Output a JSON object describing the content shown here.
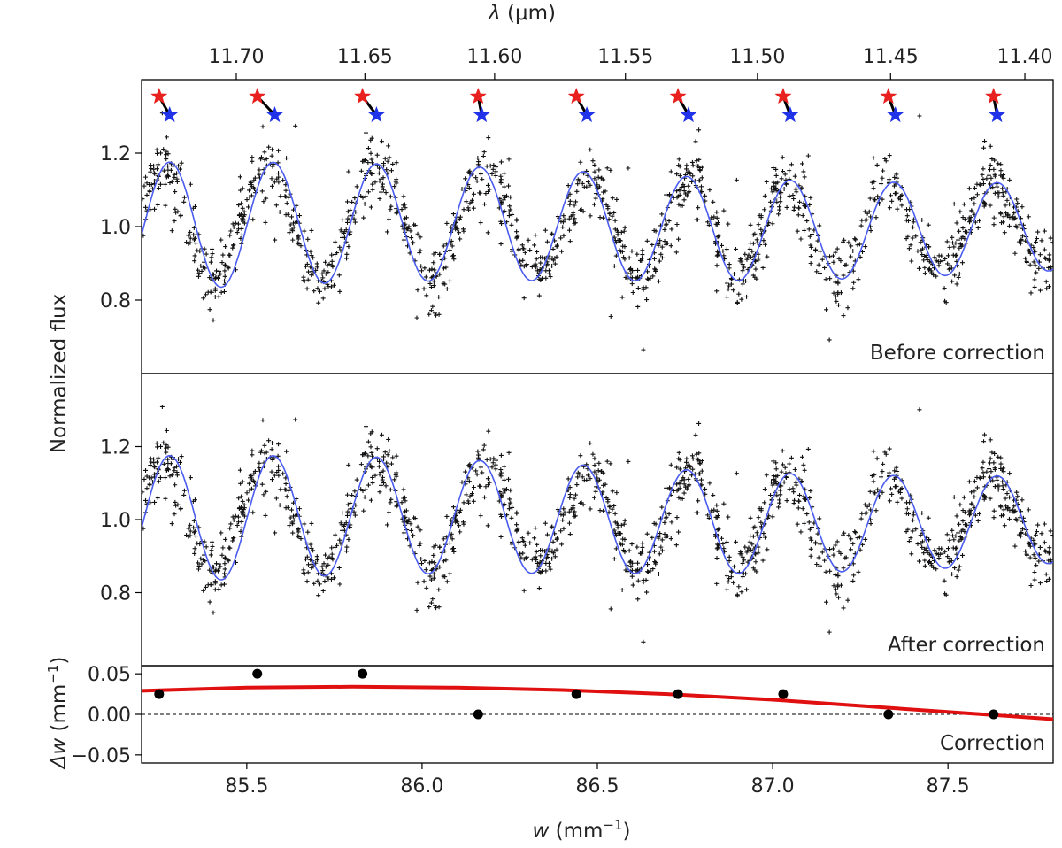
{
  "chart_data": {
    "type": "scatter",
    "top_axis": {
      "label_symbol": "λ",
      "label_unit": "(μm)",
      "ticks": [
        11.7,
        11.65,
        11.6,
        11.55,
        11.5,
        11.45,
        11.4
      ],
      "tick_labels": [
        "11.70",
        "11.65",
        "11.60",
        "11.55",
        "11.50",
        "11.45",
        "11.40"
      ],
      "relation": "λ(μm) = 1000 / w(mm⁻¹)"
    },
    "x_axis": {
      "label_symbol": "w",
      "label_unit": "(mm",
      "label_exp": "−1",
      "label_close": ")",
      "lim": [
        85.2,
        87.8
      ],
      "ticks": [
        85.5,
        86.0,
        86.5,
        87.0,
        87.5
      ],
      "tick_labels": [
        "85.5",
        "86.0",
        "86.5",
        "87.0",
        "87.5"
      ]
    },
    "flux_axis": {
      "label": "Normalized flux",
      "lim": [
        0.6,
        1.4
      ],
      "ticks": [
        0.8,
        1.0,
        1.2
      ],
      "tick_labels": [
        "0.8",
        "1.0",
        "1.2"
      ]
    },
    "panels": [
      {
        "id": "before",
        "title": "Before correction",
        "model_line_color": "#4a5cf0",
        "model_peaks": [
          85.28,
          85.58,
          85.87,
          86.17,
          86.47,
          86.76,
          87.05,
          87.35,
          87.64
        ],
        "model_amplitudes_early": 0.175,
        "model_amplitude_late": 0.12,
        "data_shift": 0.0,
        "markers": {
          "red_star_color": "#e8201e",
          "blue_star_color": "#2133e8",
          "red_w": [
            85.25,
            85.53,
            85.83,
            86.16,
            86.44,
            86.73,
            87.03,
            87.33,
            87.63
          ],
          "blue_w": [
            85.28,
            85.58,
            85.87,
            86.17,
            86.47,
            86.76,
            87.05,
            87.35,
            87.64
          ]
        }
      },
      {
        "id": "after",
        "title": "After correction",
        "model_line_color": "#4a5cf0",
        "data_shift": 0.0
      },
      {
        "id": "correction",
        "title": "Correction",
        "y_label_symbol": "Δw",
        "y_label_unit": "(mm",
        "y_label_exp": "−1",
        "y_label_close": ")",
        "y_lim": [
          -0.06,
          0.06
        ],
        "y_ticks": [
          -0.05,
          0.0,
          0.05
        ],
        "y_tick_labels": [
          "−0.05",
          "0.00",
          "0.05"
        ],
        "points_w": [
          85.25,
          85.53,
          85.83,
          86.16,
          86.44,
          86.73,
          87.03,
          87.33,
          87.63
        ],
        "points_dw": [
          0.025,
          0.05,
          0.05,
          0.0,
          0.025,
          0.025,
          0.025,
          0.0,
          0.0
        ],
        "fit_color": "#e01010",
        "fit_curve_w": [
          85.2,
          85.5,
          85.8,
          86.1,
          86.4,
          86.7,
          87.0,
          87.3,
          87.6,
          87.8
        ],
        "fit_curve_dw": [
          0.029,
          0.033,
          0.034,
          0.033,
          0.03,
          0.025,
          0.018,
          0.009,
          0.0,
          -0.006
        ],
        "zero_line": "dashed"
      }
    ]
  }
}
